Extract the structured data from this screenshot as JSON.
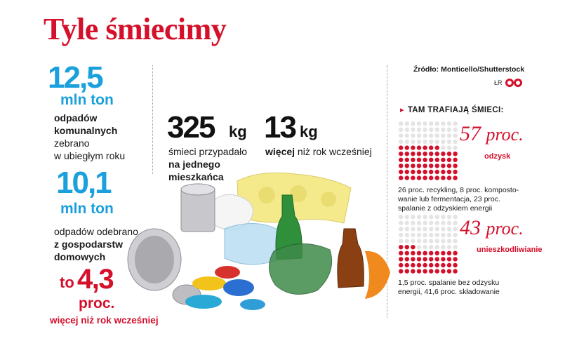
{
  "title": "Tyle śmiecimy",
  "left": {
    "stat1": {
      "value": "12,5",
      "unit": "mln ton",
      "line1": "odpadów",
      "line2": "komunalnych",
      "line3": "zebrano",
      "line4": "w ubiegłym roku"
    },
    "stat2": {
      "value": "10,1",
      "unit": "mln ton",
      "line1": "odpadów odebrano",
      "line2": "z gospodarstw",
      "line3": "domowych"
    },
    "stat3": {
      "prefix": "to",
      "value": "4,3",
      "unit": "proc.",
      "desc": "więcej niż rok wcześniej"
    }
  },
  "middle": {
    "kg1": {
      "value": "325",
      "unit": "kg",
      "line1": "śmieci przypadało",
      "line2": "na jednego",
      "line3": "mieszkańca"
    },
    "kg2": {
      "value": "13",
      "unit": "kg",
      "bold": "więcej",
      "rest": " niż rok wcześniej"
    }
  },
  "right": {
    "source": "Źródło: Monticello/Shutterstock",
    "credit": "ŁR",
    "section_title": "TAM TRAFIAJĄ ŚMIECI:",
    "recovery": {
      "value": "57",
      "unit": "proc.",
      "label": "odzysk",
      "note1": "26 proc. recykling, 8 proc. komposto-",
      "note2": "wanie lub fermentacja, 23 proc.",
      "note3": "spalanie z odzyskiem energii"
    },
    "disposal": {
      "value": "43",
      "unit": "proc.",
      "label": "unieszkodliwianie",
      "note1": "1,5 proc. spalanie bez odzysku",
      "note2": "energii, 41,6 proc. składowanie"
    }
  },
  "colors": {
    "red": "#d4102b",
    "blue": "#1aa0dc",
    "dot_empty": "#e4e4e4"
  },
  "chart_data": {
    "type": "waffle",
    "title": "TAM TRAFIAJĄ ŚMIECI:",
    "total_dots": 100,
    "series": [
      {
        "name": "odzysk",
        "value": 57,
        "breakdown": [
          {
            "name": "recykling",
            "value": 26
          },
          {
            "name": "kompostowanie lub fermentacja",
            "value": 8
          },
          {
            "name": "spalanie z odzyskiem energii",
            "value": 23
          }
        ]
      },
      {
        "name": "unieszkodliwianie",
        "value": 43,
        "breakdown": [
          {
            "name": "spalanie bez odzysku energii",
            "value": 1.5
          },
          {
            "name": "składowanie",
            "value": 41.6
          }
        ]
      }
    ]
  }
}
